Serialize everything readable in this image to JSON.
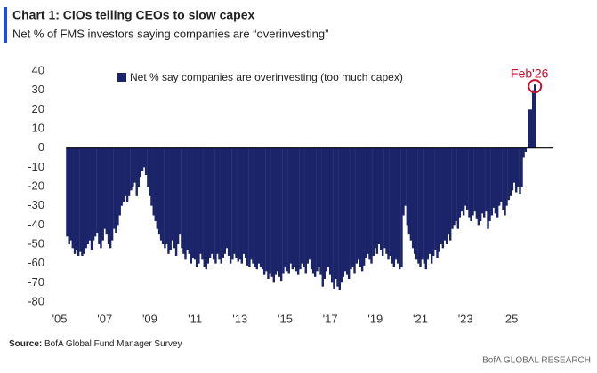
{
  "chart_data": {
    "type": "bar",
    "title": "Chart 1: CIOs telling CEOs to slow capex",
    "subtitle": "Net % of FMS investors saying companies are “overinvesting”",
    "source_label": "Source:",
    "source": "BofA Global Fund Manager Survey",
    "footer": "BofA GLOBAL RESEARCH",
    "annotation": "Feb'26",
    "annotation_color": "#c8102e",
    "legend": true,
    "xlim": [
      2004.8,
      2026.9
    ],
    "ylim": [
      -80,
      40
    ],
    "yticks": [
      -80,
      -70,
      -60,
      -50,
      -40,
      -30,
      -20,
      -10,
      0,
      10,
      20,
      30,
      40
    ],
    "xticks": [
      {
        "value": 2005,
        "label": "'05"
      },
      {
        "value": 2007,
        "label": "'07"
      },
      {
        "value": 2009,
        "label": "'09"
      },
      {
        "value": 2011,
        "label": "'11"
      },
      {
        "value": 2013,
        "label": "'13"
      },
      {
        "value": 2015,
        "label": "'15"
      },
      {
        "value": 2017,
        "label": "'17"
      },
      {
        "value": 2019,
        "label": "'19"
      },
      {
        "value": 2021,
        "label": "'21"
      },
      {
        "value": 2023,
        "label": "'23"
      },
      {
        "value": 2025,
        "label": "'25"
      }
    ],
    "x": [
      2005.33,
      2005.42,
      2005.5,
      2005.58,
      2005.67,
      2005.75,
      2005.83,
      2005.92,
      2006,
      2006.08,
      2006.17,
      2006.25,
      2006.33,
      2006.42,
      2006.5,
      2006.58,
      2006.67,
      2006.75,
      2006.83,
      2006.92,
      2007,
      2007.08,
      2007.17,
      2007.25,
      2007.33,
      2007.42,
      2007.5,
      2007.58,
      2007.67,
      2007.75,
      2007.83,
      2007.92,
      2008,
      2008.08,
      2008.17,
      2008.25,
      2008.33,
      2008.42,
      2008.5,
      2008.58,
      2008.67,
      2008.75,
      2008.83,
      2008.92,
      2009,
      2009.08,
      2009.17,
      2009.25,
      2009.33,
      2009.42,
      2009.5,
      2009.58,
      2009.67,
      2009.75,
      2009.83,
      2009.92,
      2010,
      2010.08,
      2010.17,
      2010.25,
      2010.33,
      2010.42,
      2010.5,
      2010.58,
      2010.67,
      2010.75,
      2010.83,
      2010.92,
      2011,
      2011.08,
      2011.17,
      2011.25,
      2011.33,
      2011.42,
      2011.5,
      2011.58,
      2011.67,
      2011.75,
      2011.83,
      2011.92,
      2012,
      2012.08,
      2012.17,
      2012.25,
      2012.33,
      2012.42,
      2012.5,
      2012.58,
      2012.67,
      2012.75,
      2012.83,
      2012.92,
      2013,
      2013.08,
      2013.17,
      2013.25,
      2013.33,
      2013.42,
      2013.5,
      2013.58,
      2013.67,
      2013.75,
      2013.83,
      2013.92,
      2014,
      2014.08,
      2014.17,
      2014.25,
      2014.33,
      2014.42,
      2014.5,
      2014.58,
      2014.67,
      2014.75,
      2014.83,
      2014.92,
      2015,
      2015.08,
      2015.17,
      2015.25,
      2015.33,
      2015.42,
      2015.5,
      2015.58,
      2015.67,
      2015.75,
      2015.83,
      2015.92,
      2016,
      2016.08,
      2016.17,
      2016.25,
      2016.33,
      2016.42,
      2016.5,
      2016.58,
      2016.67,
      2016.75,
      2016.83,
      2016.92,
      2017,
      2017.08,
      2017.17,
      2017.25,
      2017.33,
      2017.42,
      2017.5,
      2017.58,
      2017.67,
      2017.75,
      2017.83,
      2017.92,
      2018,
      2018.08,
      2018.17,
      2018.25,
      2018.33,
      2018.42,
      2018.5,
      2018.58,
      2018.67,
      2018.75,
      2018.83,
      2018.92,
      2019,
      2019.08,
      2019.17,
      2019.25,
      2019.33,
      2019.42,
      2019.5,
      2019.58,
      2019.67,
      2019.75,
      2019.83,
      2019.92,
      2020,
      2020.08,
      2020.17,
      2020.25,
      2020.33,
      2020.42,
      2020.5,
      2020.58,
      2020.67,
      2020.75,
      2020.83,
      2020.92,
      2021,
      2021.08,
      2021.17,
      2021.25,
      2021.33,
      2021.42,
      2021.5,
      2021.58,
      2021.67,
      2021.75,
      2021.83,
      2021.92,
      2022,
      2022.08,
      2022.17,
      2022.25,
      2022.33,
      2022.42,
      2022.5,
      2022.58,
      2022.67,
      2022.75,
      2022.83,
      2022.92,
      2023,
      2023.08,
      2023.17,
      2023.25,
      2023.33,
      2023.42,
      2023.5,
      2023.58,
      2023.67,
      2023.75,
      2023.83,
      2023.92,
      2024,
      2024.08,
      2024.17,
      2024.25,
      2024.33,
      2024.42,
      2024.5,
      2024.58,
      2024.67,
      2024.75,
      2024.83,
      2024.92,
      2025,
      2025.08,
      2025.17,
      2025.25,
      2025.33,
      2025.42,
      2025.5,
      2025.58,
      2025.67,
      2025.75,
      2025.83,
      2025.92,
      2026,
      2026.08
    ],
    "series": [
      {
        "name": "Net % say companies are overinvesting (too much capex)",
        "color": "#1b2469",
        "values": [
          -46,
          -50,
          -48,
          -52,
          -55,
          -53,
          -56,
          -54,
          -56,
          -55,
          -52,
          -50,
          -48,
          -53,
          -48,
          -46,
          -44,
          -50,
          -52,
          -48,
          -42,
          -45,
          -50,
          -52,
          -48,
          -42,
          -44,
          -40,
          -35,
          -30,
          -28,
          -25,
          -28,
          -25,
          -22,
          -20,
          -18,
          -25,
          -20,
          -15,
          -12,
          -10,
          -14,
          -20,
          -25,
          -30,
          -35,
          -38,
          -42,
          -45,
          -48,
          -50,
          -52,
          -50,
          -55,
          -53,
          -48,
          -52,
          -56,
          -50,
          -45,
          -52,
          -55,
          -58,
          -53,
          -55,
          -60,
          -57,
          -58,
          -62,
          -60,
          -55,
          -58,
          -62,
          -63,
          -60,
          -57,
          -55,
          -58,
          -60,
          -55,
          -58,
          -60,
          -57,
          -55,
          -52,
          -56,
          -60,
          -58,
          -55,
          -57,
          -59,
          -58,
          -60,
          -55,
          -57,
          -61,
          -62,
          -58,
          -60,
          -62,
          -63,
          -60,
          -62,
          -63,
          -66,
          -64,
          -68,
          -65,
          -67,
          -70,
          -66,
          -64,
          -67,
          -69,
          -65,
          -62,
          -64,
          -65,
          -60,
          -63,
          -62,
          -64,
          -66,
          -63,
          -60,
          -62,
          -65,
          -60,
          -58,
          -63,
          -65,
          -67,
          -64,
          -62,
          -66,
          -72,
          -68,
          -64,
          -62,
          -66,
          -70,
          -73,
          -68,
          -72,
          -74,
          -70,
          -67,
          -64,
          -66,
          -68,
          -63,
          -62,
          -65,
          -60,
          -58,
          -62,
          -64,
          -61,
          -57,
          -55,
          -58,
          -60,
          -56,
          -52,
          -55,
          -50,
          -53,
          -56,
          -52,
          -55,
          -58,
          -56,
          -60,
          -62,
          -58,
          -60,
          -63,
          -62,
          -35,
          -30,
          -40,
          -45,
          -48,
          -52,
          -55,
          -58,
          -60,
          -62,
          -58,
          -60,
          -63,
          -58,
          -55,
          -60,
          -56,
          -53,
          -57,
          -54,
          -50,
          -52,
          -48,
          -50,
          -45,
          -48,
          -42,
          -40,
          -38,
          -42,
          -36,
          -33,
          -35,
          -30,
          -32,
          -36,
          -38,
          -35,
          -33,
          -37,
          -40,
          -38,
          -34,
          -36,
          -33,
          -42,
          -38,
          -35,
          -31,
          -34,
          -36,
          -30,
          -28,
          -32,
          -35,
          -30,
          -27,
          -25,
          -22,
          -18,
          -23,
          -20,
          -24,
          -20,
          -5,
          -2,
          0,
          20,
          20,
          30,
          33
        ]
      }
    ]
  }
}
